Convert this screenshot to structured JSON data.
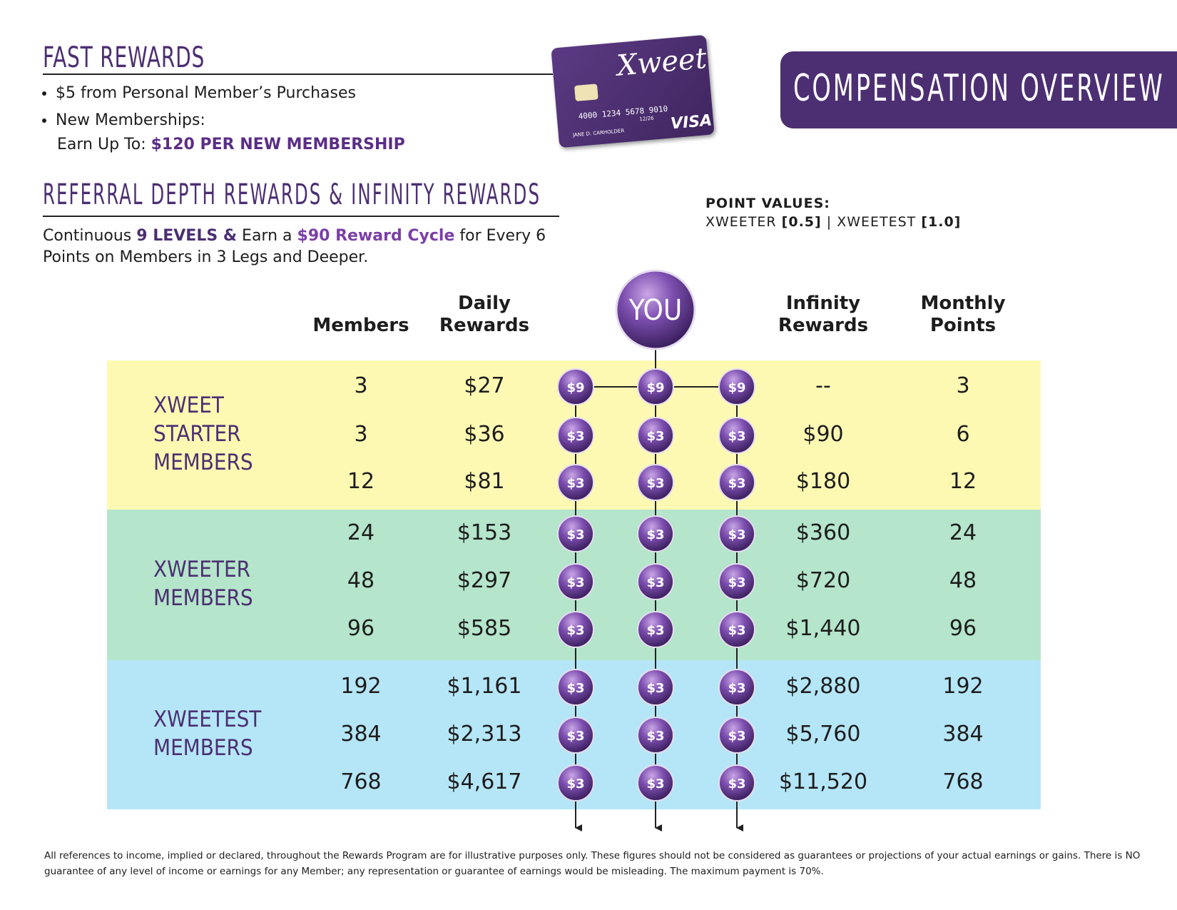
{
  "fast_rewards": {
    "title": "FAST REWARDS",
    "items": [
      "$5 from Personal Member’s Purchases",
      "New Memberships:"
    ],
    "earn_label": "Earn Up To:",
    "earn_value": "$120 PER NEW MEMBERSHIP"
  },
  "card": {
    "brand": "Xweet",
    "number": "4000 1234 5678 9010",
    "expiry": "12/26",
    "holder": "JANE D. CARHOLDER",
    "network": "VISA"
  },
  "header": {
    "title": "COMPENSATION OVERVIEW"
  },
  "referral": {
    "title": "REFERRAL DEPTH REWARDS & INFINITY REWARDS",
    "description": [
      "Continuous",
      "9 LEVELS &",
      "Earn a",
      "$90 Reward Cycle",
      "for Every 6 Points on Members in 3 Legs and Deeper."
    ]
  },
  "point_values": {
    "label": "POINT VALUES:",
    "items": [
      {
        "name": "XWEETER",
        "value": "[0.5]"
      },
      {
        "name": "XWEETEST",
        "value": "[1.0]"
      }
    ],
    "separator": "|"
  },
  "table": {
    "headers": {
      "members": "Members",
      "daily": "Daily Rewards",
      "you": "YOU",
      "infinity": "Infinity Rewards",
      "points": "Monthly Points"
    },
    "groups": [
      {
        "name": "XWEET STARTER MEMBERS",
        "color": "#fdf9b3",
        "rows": [
          {
            "members": "3",
            "daily": "$27",
            "nodes": [
              "$9",
              "$9",
              "$9"
            ],
            "infinity": "--",
            "points": "3"
          },
          {
            "members": "3",
            "daily": "$36",
            "nodes": [
              "$3",
              "$3",
              "$3"
            ],
            "infinity": "$90",
            "points": "6"
          },
          {
            "members": "12",
            "daily": "$81",
            "nodes": [
              "$3",
              "$3",
              "$3"
            ],
            "infinity": "$180",
            "points": "12"
          }
        ]
      },
      {
        "name": "XWEETER MEMBERS",
        "color": "#b5e5cb",
        "rows": [
          {
            "members": "24",
            "daily": "$153",
            "nodes": [
              "$3",
              "$3",
              "$3"
            ],
            "infinity": "$360",
            "points": "24"
          },
          {
            "members": "48",
            "daily": "$297",
            "nodes": [
              "$3",
              "$3",
              "$3"
            ],
            "infinity": "$720",
            "points": "48"
          },
          {
            "members": "96",
            "daily": "$585",
            "nodes": [
              "$3",
              "$3",
              "$3"
            ],
            "infinity": "$1,440",
            "points": "96"
          }
        ]
      },
      {
        "name": "XWEETEST MEMBERS",
        "color": "#b5e6f8",
        "rows": [
          {
            "members": "192",
            "daily": "$1,161",
            "nodes": [
              "$3",
              "$3",
              "$3"
            ],
            "infinity": "$2,880",
            "points": "192"
          },
          {
            "members": "384",
            "daily": "$2,313",
            "nodes": [
              "$3",
              "$3",
              "$3"
            ],
            "infinity": "$5,760",
            "points": "384"
          },
          {
            "members": "768",
            "daily": "$4,617",
            "nodes": [
              "$3",
              "$3",
              "$3"
            ],
            "infinity": "$11,520",
            "points": "768"
          }
        ]
      }
    ]
  },
  "disclaimer": "All references to income, implied or declared, throughout the Rewards Program are for illustrative purposes only. These figures should not be considered as guarantees or projections of your actual earnings or gains. There is NO guarantee of any level of income or earnings for any Member; any representation or guarantee of earnings would be misleading. The maximum payment is 70%."
}
